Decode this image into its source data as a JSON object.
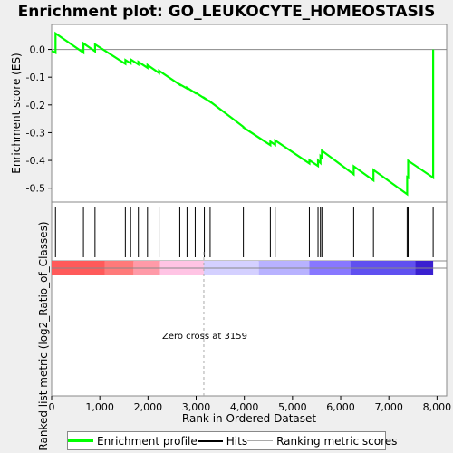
{
  "chart_data": {
    "type": "line",
    "title": "Enrichment plot: GO_LEUKOCYTE_HOMEOSTASIS",
    "top_ylabel": "Enrichment score (ES)",
    "bottom_ylabel": "Ranked list metric (log2_Ratio_of_Classes)",
    "xlabel": "Rank in Ordered Dataset",
    "annotation": "Zero cross at 3159",
    "zero_cross": 3159,
    "xlim": [
      0,
      8200
    ],
    "ylim": [
      -0.55,
      0.09
    ],
    "x_ticks": [
      0,
      1000,
      2000,
      3000,
      4000,
      5000,
      6000,
      7000,
      8000
    ],
    "x_tick_labels": [
      "0",
      "1,000",
      "2,000",
      "3,000",
      "4,000",
      "5,000",
      "6,000",
      "7,000",
      "8,000"
    ],
    "y_ticks": [
      0.0,
      -0.1,
      -0.2,
      -0.3,
      -0.4,
      -0.5
    ],
    "y_tick_labels": [
      "0.0",
      "-0.1",
      "-0.2",
      "-0.3",
      "-0.4",
      "-0.5"
    ],
    "colors": {
      "profile": "#00ff00",
      "hits": "#000000",
      "zero_line": "#aaaaaa"
    },
    "hits": [
      80,
      660,
      900,
      1530,
      1640,
      1800,
      1990,
      2230,
      2660,
      2810,
      2980,
      3170,
      3290,
      3980,
      4540,
      4640,
      5350,
      5530,
      5580,
      5610,
      6270,
      6680,
      7380,
      7400,
      7920
    ],
    "series": [
      {
        "x": [
          0,
          80,
          80,
          660,
          660,
          900,
          900,
          1530,
          1530,
          1640,
          1640,
          1800,
          1800,
          1990,
          1990,
          2230,
          2230,
          2660,
          2660,
          2810,
          2810,
          2980,
          2980,
          3170,
          3170,
          3290,
          3290,
          3980,
          3980,
          4540,
          4540,
          4640,
          4640,
          5350,
          5350,
          5530,
          5530,
          5580,
          5580,
          5610,
          5610,
          6270,
          6270,
          6680,
          6680,
          7380,
          7380,
          7400,
          7400,
          7920,
          7920
        ],
        "y": [
          -0.005,
          -0.012,
          0.058,
          -0.012,
          0.022,
          -0.007,
          0.018,
          -0.052,
          -0.038,
          -0.05,
          -0.036,
          -0.054,
          -0.045,
          -0.066,
          -0.056,
          -0.085,
          -0.077,
          -0.127,
          -0.126,
          -0.141,
          -0.138,
          -0.157,
          -0.155,
          -0.176,
          -0.175,
          -0.189,
          -0.188,
          -0.279,
          -0.281,
          -0.345,
          -0.332,
          -0.344,
          -0.328,
          -0.411,
          -0.399,
          -0.42,
          -0.4,
          -0.409,
          -0.384,
          -0.389,
          -0.365,
          -0.45,
          -0.421,
          -0.472,
          -0.434,
          -0.522,
          -0.46,
          -0.462,
          -0.401,
          -0.462,
          0.0
        ]
      }
    ]
  },
  "legend": {
    "profile_label": "Enrichment profile",
    "hits_label": "Hits",
    "metric_label": "Ranking metric scores"
  }
}
